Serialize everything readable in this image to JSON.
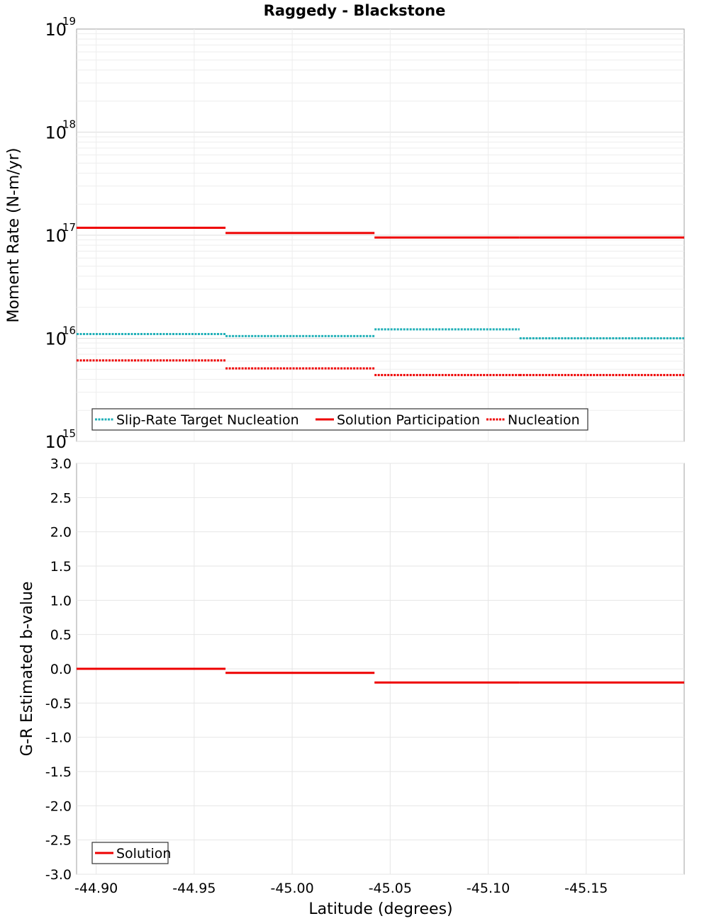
{
  "chart_data": [
    {
      "type": "line",
      "title": "Raggedy - Blackstone",
      "xlabel": "Latitude (degrees)",
      "ylabel": "Moment Rate (N-m/yr)",
      "yscale": "log",
      "ylim": [
        1000000000000000.0,
        1e+19
      ],
      "xlim": [
        -44.89,
        -45.2
      ],
      "x_inverted": true,
      "grid": true,
      "y_ticks": [
        {
          "base": "10",
          "exp": "15",
          "value": 1000000000000000.0
        },
        {
          "base": "10",
          "exp": "16",
          "value": 1e+16
        },
        {
          "base": "10",
          "exp": "17",
          "value": 1e+17
        },
        {
          "base": "10",
          "exp": "18",
          "value": 1e+18
        },
        {
          "base": "10",
          "exp": "19",
          "value": 1e+19
        }
      ],
      "legend_position": "bottom-left",
      "series": [
        {
          "name": "Slip-Rate Target Nucleation",
          "color": "#22b0b8",
          "style": "dotted",
          "steps": [
            {
              "x0": -44.89,
              "x1": -44.966,
              "y": 1.1e+16
            },
            {
              "x0": -44.966,
              "x1": -45.042,
              "y": 1.05e+16
            },
            {
              "x0": -45.042,
              "x1": -45.116,
              "y": 1.22e+16
            },
            {
              "x0": -45.116,
              "x1": -45.2,
              "y": 1e+16
            }
          ]
        },
        {
          "name": "Solution Participation",
          "color": "#ee0000",
          "style": "solid",
          "steps": [
            {
              "x0": -44.89,
              "x1": -44.966,
              "y": 1.18e+17
            },
            {
              "x0": -44.966,
              "x1": -45.042,
              "y": 1.05e+17
            },
            {
              "x0": -45.042,
              "x1": -45.116,
              "y": 9.5e+16
            },
            {
              "x0": -45.116,
              "x1": -45.2,
              "y": 9.5e+16
            }
          ]
        },
        {
          "name": "Nucleation",
          "color": "#ee0000",
          "style": "dotted",
          "steps": [
            {
              "x0": -44.89,
              "x1": -44.966,
              "y": 6100000000000000.0
            },
            {
              "x0": -44.966,
              "x1": -45.042,
              "y": 5100000000000000.0
            },
            {
              "x0": -45.042,
              "x1": -45.116,
              "y": 4400000000000000.0
            },
            {
              "x0": -45.116,
              "x1": -45.2,
              "y": 4400000000000000.0
            }
          ]
        }
      ]
    },
    {
      "type": "line",
      "title": "",
      "xlabel": "Latitude (degrees)",
      "ylabel": "G-R Estimated b-value",
      "xlim": [
        -44.89,
        -45.2
      ],
      "ylim": [
        -3.0,
        3.0
      ],
      "x_inverted": true,
      "grid": true,
      "x_ticks": [
        "-44.90",
        "-44.95",
        "-45.00",
        "-45.05",
        "-45.10",
        "-45.15"
      ],
      "x_tick_values": [
        -44.9,
        -44.95,
        -45.0,
        -45.05,
        -45.1,
        -45.15
      ],
      "y_ticks": [
        "3.0",
        "2.5",
        "2.0",
        "1.5",
        "1.0",
        "0.5",
        "0.0",
        "-0.5",
        "-1.0",
        "-1.5",
        "-2.0",
        "-2.5",
        "-3.0"
      ],
      "y_tick_values": [
        3.0,
        2.5,
        2.0,
        1.5,
        1.0,
        0.5,
        0.0,
        -0.5,
        -1.0,
        -1.5,
        -2.0,
        -2.5,
        -3.0
      ],
      "legend_position": "bottom-left",
      "series": [
        {
          "name": "Solution",
          "color": "#ee0000",
          "style": "solid",
          "steps": [
            {
              "x0": -44.89,
              "x1": -44.966,
              "y": 0.0
            },
            {
              "x0": -44.966,
              "x1": -45.042,
              "y": -0.06
            },
            {
              "x0": -45.042,
              "x1": -45.116,
              "y": -0.2
            },
            {
              "x0": -45.116,
              "x1": -45.2,
              "y": -0.2
            }
          ]
        }
      ]
    }
  ]
}
